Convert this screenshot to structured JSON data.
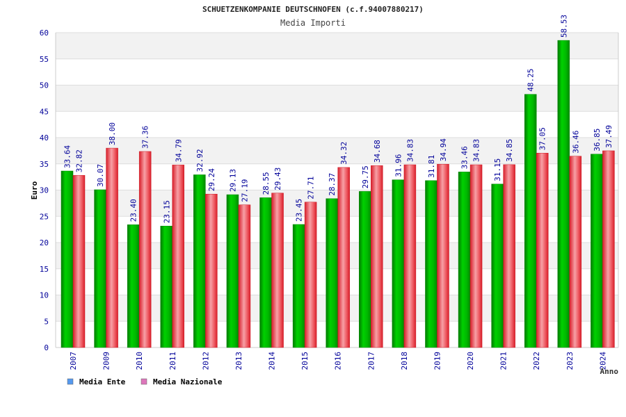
{
  "chart_data": {
    "type": "bar",
    "title": "SCHUETZENKOMPANIE DEUTSCHNOFEN (c.f.94007880217)",
    "subtitle": "Media Importi",
    "ylabel": "Euro",
    "xlabel": "Anno",
    "ylim": [
      0,
      60
    ],
    "yticks": [
      0,
      5,
      10,
      15,
      20,
      25,
      30,
      35,
      40,
      45,
      50,
      55,
      60
    ],
    "categories": [
      "2007",
      "2009",
      "2010",
      "2011",
      "2012",
      "2013",
      "2014",
      "2015",
      "2016",
      "2017",
      "2018",
      "2019",
      "2020",
      "2021",
      "2022",
      "2023",
      "2024"
    ],
    "series": [
      {
        "name": "Media Ente",
        "color": "#00bb00",
        "values": [
          33.64,
          30.07,
          23.4,
          23.15,
          32.92,
          29.13,
          28.55,
          23.45,
          28.37,
          29.75,
          31.96,
          31.81,
          33.46,
          31.15,
          48.25,
          58.53,
          36.85
        ],
        "labels": [
          "33.64",
          "30.07",
          "23.40",
          "23.15",
          "32.92",
          "29.13",
          "28.55",
          "23.45",
          "28.37",
          "29.75",
          "31.96",
          "31.81",
          "33.46",
          "31.15",
          "48.25",
          "58.53",
          "36.85"
        ]
      },
      {
        "name": "Media Nazionale",
        "color": "#e8323c",
        "values": [
          32.82,
          38.0,
          37.36,
          34.79,
          29.24,
          27.19,
          29.43,
          27.71,
          34.32,
          34.68,
          34.83,
          34.94,
          34.83,
          34.85,
          37.05,
          36.46,
          37.49
        ],
        "labels": [
          "32.82",
          "38.00",
          "37.36",
          "34.79",
          "29.24",
          "27.19",
          "29.43",
          "27.71",
          "34.32",
          "34.68",
          "34.83",
          "34.94",
          "34.83",
          "34.85",
          "37.05",
          "36.46",
          "37.49"
        ]
      }
    ],
    "legend": {
      "placement": "bottom-left",
      "entries": [
        {
          "label": "Media Ente",
          "color": "#5599ee"
        },
        {
          "label": "Media Nazionale",
          "color": "#dd77bb"
        }
      ]
    },
    "grid": true
  }
}
